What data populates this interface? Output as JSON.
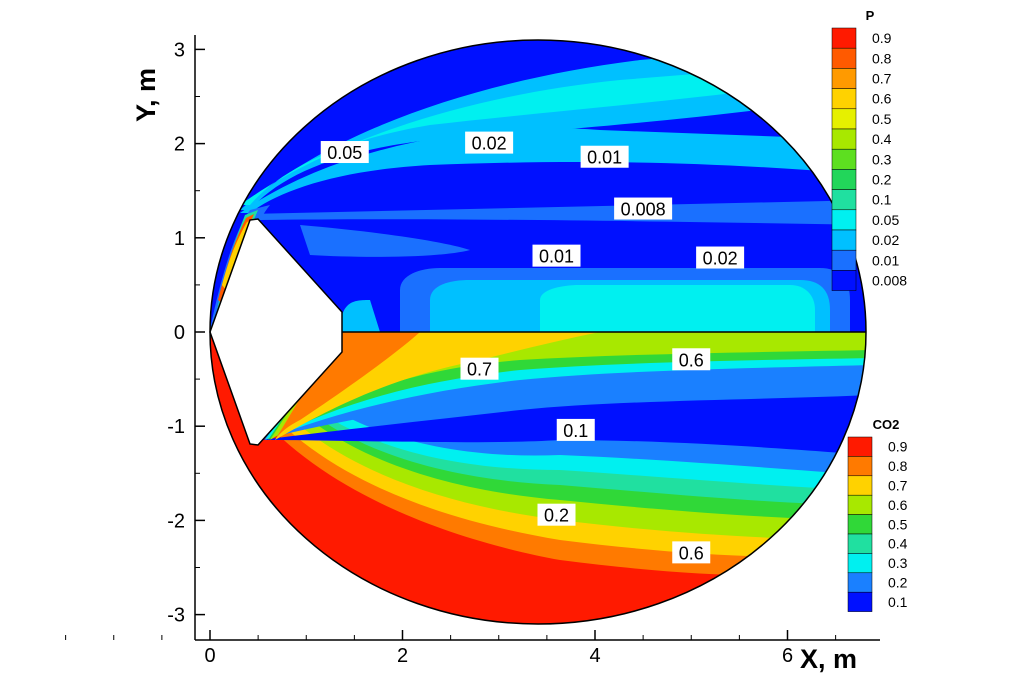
{
  "chart_data": {
    "type": "contour",
    "xlabel": "X, m",
    "ylabel": "Y, m",
    "xlim": [
      -0.2,
      7.0
    ],
    "ylim": [
      -3.2,
      3.2
    ],
    "xticks": [
      0,
      2,
      4,
      6
    ],
    "yticks": [
      -3,
      -2,
      -1,
      0,
      1,
      2,
      3
    ],
    "upper_half": {
      "variable": "P",
      "legend": {
        "title": "P",
        "levels": [
          "0.9",
          "0.8",
          "0.7",
          "0.6",
          "0.5",
          "0.4",
          "0.3",
          "0.2",
          "0.1",
          "0.05",
          "0.02",
          "0.01",
          "0.008"
        ],
        "colors": [
          "#ff1a00",
          "#ff5a00",
          "#ff9a00",
          "#ffd200",
          "#e6f000",
          "#a8e800",
          "#5ddf20",
          "#22d65a",
          "#20e0a0",
          "#00f0f0",
          "#00c0ff",
          "#1a70ff",
          "#0010ff"
        ]
      },
      "contour_labels": [
        {
          "text": "0.05",
          "x": 1.4,
          "y": 1.9
        },
        {
          "text": "0.02",
          "x": 2.9,
          "y": 2.0
        },
        {
          "text": "0.01",
          "x": 4.1,
          "y": 1.85
        },
        {
          "text": "0.008",
          "x": 4.5,
          "y": 1.3
        },
        {
          "text": "0.01",
          "x": 3.6,
          "y": 0.8
        },
        {
          "text": "0.02",
          "x": 5.3,
          "y": 0.78
        }
      ]
    },
    "lower_half": {
      "variable": "CO2",
      "legend": {
        "title": "CO2",
        "levels": [
          "0.9",
          "0.8",
          "0.7",
          "0.6",
          "0.5",
          "0.4",
          "0.3",
          "0.2",
          "0.1"
        ],
        "colors": [
          "#ff1a00",
          "#ff7a00",
          "#ffd200",
          "#a8e800",
          "#30d838",
          "#20e0a0",
          "#00f0f0",
          "#1a80ff",
          "#0010ff"
        ]
      },
      "contour_labels": [
        {
          "text": "0.7",
          "x": 2.8,
          "y": -0.4
        },
        {
          "text": "0.6",
          "x": 5.0,
          "y": -0.3
        },
        {
          "text": "0.1",
          "x": 3.8,
          "y": -1.05
        },
        {
          "text": "0.2",
          "x": 3.6,
          "y": -1.95
        },
        {
          "text": "0.6",
          "x": 5.0,
          "y": -2.35
        }
      ]
    }
  }
}
